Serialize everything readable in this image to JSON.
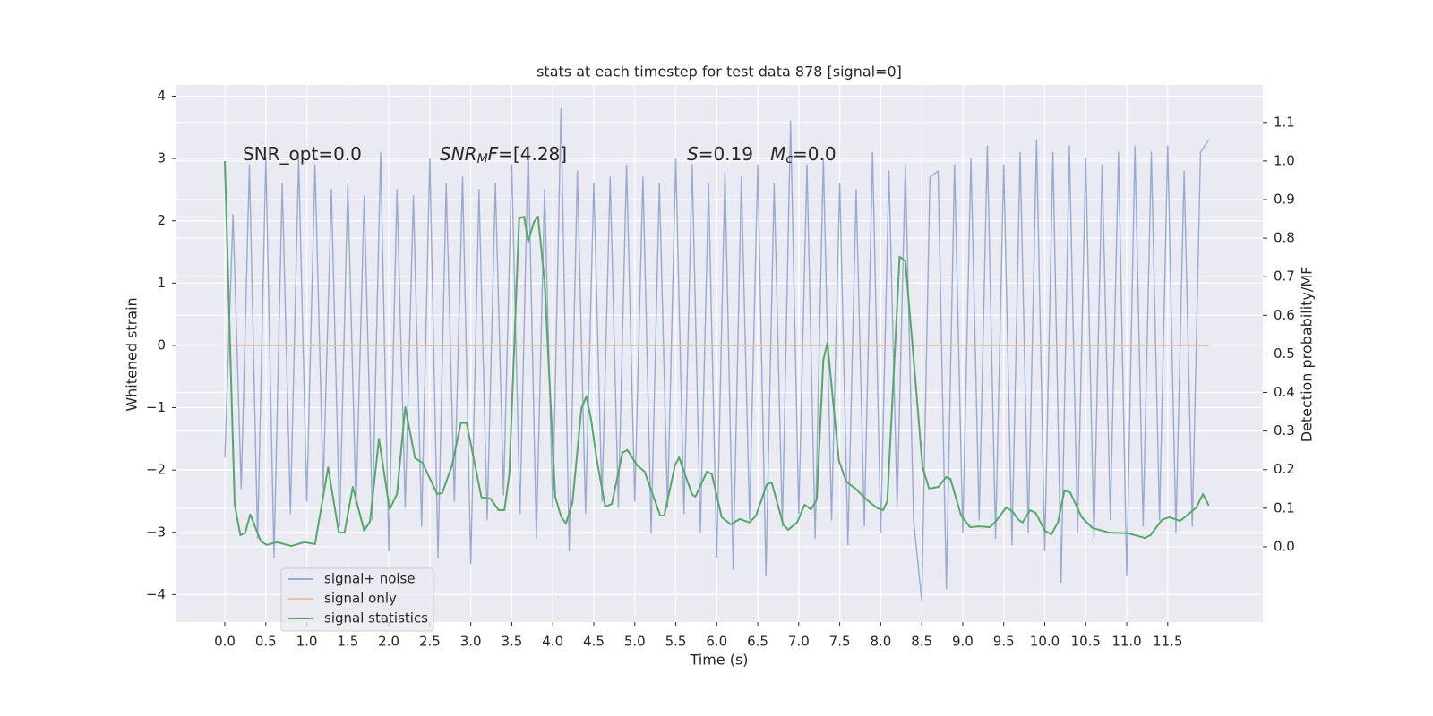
{
  "chart_data": {
    "type": "line",
    "title": "stats at each timestep for test data 878 [signal=0]",
    "xlabel": "Time (s)",
    "ylabel": "Whitened strain",
    "y2label": "Detection probability/MF",
    "xlim": [
      -0.59,
      12.66
    ],
    "ylim": [
      -4.44,
      4.18
    ],
    "y2lim": [
      -0.195,
      1.197
    ],
    "grid": true,
    "legend": "lower left",
    "xticks": [
      {
        "value": 0,
        "label": "0.0"
      },
      0.5,
      {
        "value": 1,
        "label": "1.0"
      },
      1.5,
      {
        "value": 2,
        "label": "2.0"
      },
      2.5,
      {
        "value": 3,
        "label": "3.0"
      },
      3.5,
      {
        "value": 4,
        "label": "4.0"
      },
      4.5,
      {
        "value": 5,
        "label": "5.0"
      },
      5.5,
      {
        "value": 6,
        "label": "6.0"
      },
      6.5,
      {
        "value": 7,
        "label": "7.0"
      },
      7.5,
      {
        "value": 8,
        "label": "8.0"
      },
      8.5,
      {
        "value": 9,
        "label": "9.0"
      },
      9.5,
      {
        "value": 10,
        "label": "10.0"
      },
      10.5,
      {
        "value": 11,
        "label": "11.0"
      },
      11.5
    ],
    "yticks": [
      {
        "value": -4,
        "label": "−4"
      },
      {
        "value": -3,
        "label": "−3"
      },
      {
        "value": -2,
        "label": "−2"
      },
      {
        "value": -1,
        "label": "−1"
      },
      0,
      1,
      2,
      3,
      4
    ],
    "y2ticks": [
      {
        "value": 0,
        "label": "0.0"
      },
      0.1,
      0.2,
      0.3,
      0.4,
      0.5,
      0.6,
      0.7,
      0.8,
      0.9,
      {
        "value": 1,
        "label": "1.0"
      },
      1.1
    ],
    "annotations": [
      [
        {
          "text": "SNR_opt=0.0"
        }
      ],
      [
        {
          "text": "SNR",
          "italic": true
        },
        {
          "text": "M",
          "italic": true,
          "sub": true
        },
        {
          "text": "F",
          "italic": true
        },
        {
          "text": "=[4.28]"
        }
      ],
      [
        {
          "text": "S",
          "italic": true
        },
        {
          "text": "=0.19   "
        },
        {
          "text": "M",
          "italic": true
        },
        {
          "text": "c",
          "italic": true,
          "sub": true
        },
        {
          "text": "=0.0"
        }
      ]
    ],
    "series": [
      {
        "name": "signal+ noise",
        "color": "#99aad1",
        "x": [
          0,
          0.1,
          0.2,
          0.3,
          0.4,
          0.5,
          0.6,
          0.7,
          0.8,
          0.9,
          1,
          1.1,
          1.2,
          1.3,
          1.4,
          1.5,
          1.6,
          1.7,
          1.8,
          1.9,
          2,
          2.1,
          2.2,
          2.3,
          2.4,
          2.5,
          2.6,
          2.7,
          2.8,
          2.9,
          3,
          3.1,
          3.2,
          3.3,
          3.4,
          3.5,
          3.6,
          3.7,
          3.8,
          3.9,
          4,
          4.1,
          4.2,
          4.3,
          4.4,
          4.5,
          4.6,
          4.7,
          4.8,
          4.9,
          5,
          5.1,
          5.2,
          5.3,
          5.4,
          5.5,
          5.6,
          5.7,
          5.8,
          5.9,
          6,
          6.1,
          6.2,
          6.3,
          6.4,
          6.5,
          6.6,
          6.7,
          6.8,
          6.9,
          7,
          7.1,
          7.2,
          7.3,
          7.4,
          7.5,
          7.6,
          7.7,
          7.8,
          7.9,
          8,
          8.1,
          8.2,
          8.3,
          8.4,
          8.5,
          8.6,
          8.7,
          8.8,
          8.9,
          9,
          9.1,
          9.2,
          9.3,
          9.4,
          9.5,
          9.6,
          9.7,
          9.8,
          9.9,
          10,
          10.1,
          10.2,
          10.3,
          10.4,
          10.5,
          10.6,
          10.7,
          10.8,
          10.9,
          11,
          11.1,
          11.2,
          11.3,
          11.4,
          11.5,
          11.6,
          11.7,
          11.8,
          11.9,
          12
        ],
        "values": [
          -1.8,
          2.1,
          -2.3,
          2.9,
          -3.1,
          3.0,
          -3.4,
          2.6,
          -2.7,
          3.0,
          -2.5,
          2.9,
          -2.3,
          2.5,
          -2.9,
          2.6,
          -2.6,
          2.4,
          -2.8,
          3.1,
          -3.3,
          2.5,
          -2.6,
          2.4,
          -2.9,
          3.0,
          -3.4,
          2.6,
          -2.5,
          2.7,
          -3.5,
          2.5,
          -2.8,
          2.6,
          -2.4,
          2.9,
          -2.7,
          3.2,
          -3.1,
          2.5,
          -2.6,
          3.8,
          -3.3,
          2.8,
          -2.7,
          2.6,
          -2.5,
          2.7,
          -2.6,
          2.9,
          -2.5,
          2.7,
          -3.0,
          2.6,
          -2.6,
          3.0,
          -2.7,
          2.9,
          -3.0,
          2.6,
          -3.4,
          2.8,
          -3.6,
          2.7,
          -2.8,
          2.9,
          -3.7,
          2.6,
          -2.9,
          3.6,
          -2.7,
          2.9,
          -3.1,
          3.0,
          -2.8,
          2.6,
          -3.2,
          2.5,
          -2.9,
          3.1,
          -3.0,
          2.8,
          -2.6,
          2.9,
          -2.8,
          -4.1,
          2.7,
          2.8,
          -3.9,
          2.9,
          -3.0,
          3.0,
          -2.8,
          3.2,
          -3.1,
          2.9,
          -3.2,
          3.1,
          -3.0,
          3.3,
          -3.3,
          3.1,
          -3.8,
          3.2,
          -3.0,
          3.0,
          -3.1,
          2.9,
          -2.8,
          3.1,
          -3.7,
          3.2,
          -2.9,
          3.1,
          -2.8,
          3.2,
          -3.0,
          2.8,
          -2.9,
          3.1,
          3.3
        ]
      },
      {
        "name": "signal only",
        "color": "#eebfa5",
        "x": [
          0,
          12
        ],
        "values": [
          0,
          0
        ]
      },
      {
        "name": "signal statistics",
        "color": "#55a868",
        "axis": "y2",
        "x": [
          0,
          0.12,
          0.19,
          0.25,
          0.31,
          0.44,
          0.51,
          0.64,
          0.81,
          0.97,
          1.1,
          1.26,
          1.39,
          1.46,
          1.56,
          1.7,
          1.77,
          1.88,
          2.01,
          2.1,
          2.2,
          2.32,
          2.41,
          2.59,
          2.65,
          2.77,
          2.88,
          2.95,
          3.13,
          3.24,
          3.34,
          3.41,
          3.47,
          3.59,
          3.65,
          3.7,
          3.77,
          3.82,
          3.9,
          4.03,
          4.1,
          4.16,
          4.24,
          4.35,
          4.41,
          4.47,
          4.53,
          4.64,
          4.72,
          4.85,
          4.91,
          5.03,
          5.12,
          5.31,
          5.36,
          5.49,
          5.54,
          5.7,
          5.74,
          5.88,
          5.94,
          6.06,
          6.17,
          6.28,
          6.4,
          6.48,
          6.61,
          6.67,
          6.81,
          6.87,
          6.98,
          7.07,
          7.15,
          7.22,
          7.3,
          7.35,
          7.42,
          7.49,
          7.58,
          7.69,
          7.85,
          7.96,
          8.03,
          8.08,
          8.23,
          8.3,
          8.4,
          8.51,
          8.59,
          8.7,
          8.8,
          8.85,
          8.98,
          9.09,
          9.2,
          9.33,
          9.4,
          9.53,
          9.6,
          9.68,
          9.73,
          9.82,
          9.89,
          10,
          10.08,
          10.16,
          10.24,
          10.31,
          10.45,
          10.58,
          10.78,
          11.02,
          11.22,
          11.29,
          11.43,
          11.52,
          11.65,
          11.72,
          11.85,
          11.93,
          12
        ],
        "values": [
          1.0,
          0.11,
          0.03,
          0.037,
          0.084,
          0.014,
          0.005,
          0.012,
          0.002,
          0.012,
          0.007,
          0.206,
          0.037,
          0.037,
          0.155,
          0.042,
          0.065,
          0.28,
          0.097,
          0.137,
          0.362,
          0.23,
          0.218,
          0.137,
          0.139,
          0.21,
          0.322,
          0.32,
          0.128,
          0.125,
          0.095,
          0.095,
          0.188,
          0.851,
          0.856,
          0.791,
          0.842,
          0.856,
          0.687,
          0.13,
          0.079,
          0.06,
          0.114,
          0.36,
          0.39,
          0.327,
          0.234,
          0.104,
          0.111,
          0.244,
          0.251,
          0.211,
          0.195,
          0.081,
          0.081,
          0.211,
          0.232,
          0.135,
          0.13,
          0.195,
          0.188,
          0.077,
          0.058,
          0.072,
          0.063,
          0.081,
          0.162,
          0.167,
          0.058,
          0.044,
          0.063,
          0.109,
          0.097,
          0.123,
          0.485,
          0.529,
          0.374,
          0.223,
          0.169,
          0.151,
          0.118,
          0.1,
          0.095,
          0.118,
          0.752,
          0.74,
          0.49,
          0.206,
          0.151,
          0.155,
          0.181,
          0.176,
          0.081,
          0.051,
          0.053,
          0.051,
          0.065,
          0.102,
          0.093,
          0.07,
          0.063,
          0.095,
          0.088,
          0.042,
          0.032,
          0.063,
          0.146,
          0.141,
          0.077,
          0.049,
          0.037,
          0.035,
          0.023,
          0.03,
          0.07,
          0.077,
          0.067,
          0.079,
          0.102,
          0.137,
          0.107
        ]
      }
    ]
  }
}
